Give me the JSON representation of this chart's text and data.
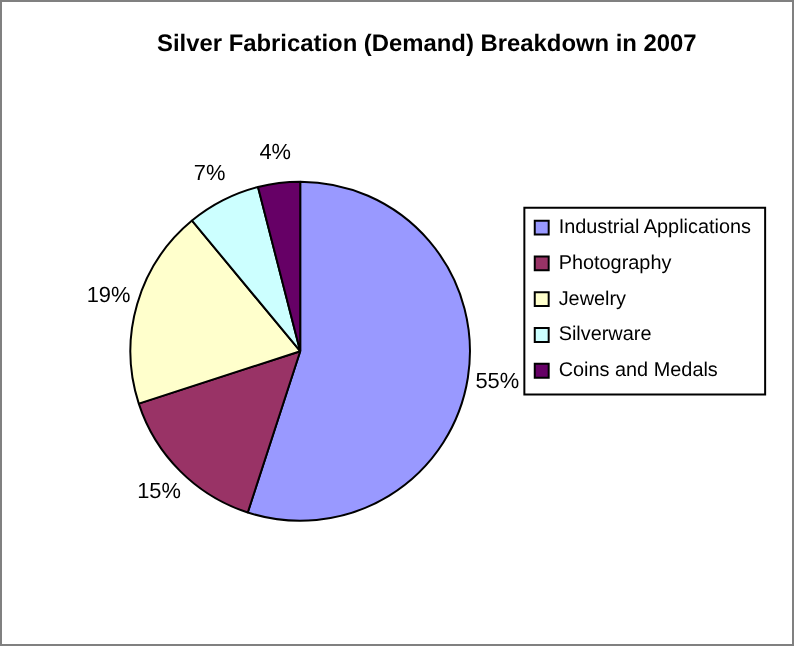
{
  "chart_data": {
    "type": "pie",
    "title": "Silver Fabrication (Demand) Breakdown in 2007",
    "categories": [
      "Industrial Applications",
      "Photography",
      "Jewelry",
      "Silverware",
      "Coins and Medals"
    ],
    "values": [
      55,
      15,
      19,
      7,
      4
    ],
    "colors": [
      "#9999ff",
      "#993366",
      "#ffffcc",
      "#ccffff",
      "#660066"
    ],
    "value_labels": [
      "55%",
      "15%",
      "19%",
      "7%",
      "4%"
    ],
    "legend": "right"
  }
}
